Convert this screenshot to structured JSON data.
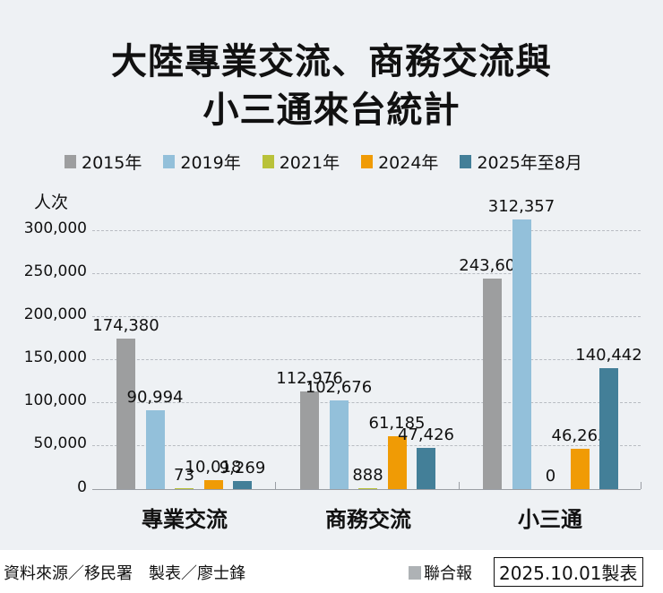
{
  "header": {
    "title_line1": "大陸專業交流、商務交流與",
    "title_line2": "小三通來台統計"
  },
  "legend": [
    {
      "label": "2015年",
      "color": "#9d9e9f"
    },
    {
      "label": "2019年",
      "color": "#93c0da"
    },
    {
      "label": "2021年",
      "color": "#b9c23a"
    },
    {
      "label": "2024年",
      "color": "#f09b05"
    },
    {
      "label": "2025年至8月",
      "color": "#437f98"
    }
  ],
  "axis": {
    "unit": "人次",
    "yticks": [
      "300,000",
      "250,000",
      "200,000",
      "150,000",
      "100,000",
      "50,000",
      "0"
    ]
  },
  "chart_data": {
    "type": "bar",
    "title": "大陸專業交流、商務交流與小三通來台統計",
    "xlabel": "",
    "ylabel": "人次",
    "ylim": [
      0,
      300000
    ],
    "grid": true,
    "legend_position": "top",
    "categories": [
      "專業交流",
      "商務交流",
      "小三通"
    ],
    "series": [
      {
        "name": "2015年",
        "color": "#9d9e9f",
        "values": [
          174380,
          112976,
          243602
        ],
        "labels": [
          "174,380",
          "112,976",
          "243,602"
        ]
      },
      {
        "name": "2019年",
        "color": "#93c0da",
        "values": [
          90994,
          102676,
          312357
        ],
        "labels": [
          "90,994",
          "102,676",
          "312,357"
        ]
      },
      {
        "name": "2021年",
        "color": "#b9c23a",
        "values": [
          73,
          888,
          0
        ],
        "labels": [
          "73",
          "888",
          "0"
        ]
      },
      {
        "name": "2024年",
        "color": "#f09b05",
        "values": [
          10018,
          61185,
          46265
        ],
        "labels": [
          "10,018",
          "61,185",
          "46,265"
        ]
      },
      {
        "name": "2025年至8月",
        "color": "#437f98",
        "values": [
          9269,
          47426,
          140442
        ],
        "labels": [
          "9,269",
          "47,426",
          "140,442"
        ]
      }
    ]
  },
  "footer": {
    "source": "資料來源／移民署　製表／廖士鋒",
    "brand": "聯合報",
    "date": "2025.10.01製表"
  }
}
